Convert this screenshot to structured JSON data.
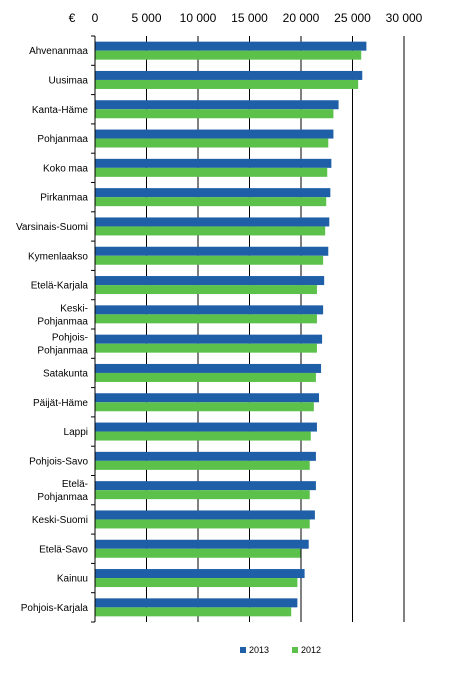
{
  "chart_data": {
    "type": "bar",
    "orientation": "horizontal",
    "unit_label": "€",
    "categories": [
      "Ahvenanmaa",
      "Uusimaa",
      "Kanta-Häme",
      "Pohjanmaa",
      "Koko maa",
      "Pirkanmaa",
      "Varsinais-Suomi",
      "Kymenlaakso",
      "Etelä-Karjala",
      [
        "Keski-",
        "Pohjanmaa"
      ],
      [
        "Pohjois-",
        "Pohjanmaa"
      ],
      "Satakunta",
      "Päijät-Häme",
      "Lappi",
      "Pohjois-Savo",
      [
        "Etelä-",
        "Pohjanmaa"
      ],
      "Keski-Suomi",
      "Etelä-Savo",
      "Kainuu",
      "Pohjois-Karjala"
    ],
    "series": [
      {
        "name": "2013",
        "color": "#1f5fa8",
        "values": [
          26300,
          25900,
          23600,
          23100,
          22900,
          22800,
          22700,
          22600,
          22200,
          22100,
          22000,
          21900,
          21700,
          21500,
          21400,
          21400,
          21300,
          20700,
          20300,
          19600
        ]
      },
      {
        "name": "2012",
        "color": "#5bc14b",
        "values": [
          25800,
          25500,
          23100,
          22600,
          22500,
          22400,
          22300,
          22100,
          21500,
          21500,
          21500,
          21400,
          21200,
          20900,
          20800,
          20800,
          20800,
          19900,
          19600,
          19000
        ]
      }
    ],
    "xlim": [
      0,
      30000
    ],
    "xticks": [
      0,
      5000,
      10000,
      15000,
      20000,
      25000,
      30000
    ],
    "xtick_labels": [
      "0",
      "5 000",
      "10 000",
      "15 000",
      "20 000",
      "25 000",
      "30 000"
    ],
    "grid": "vertical-major",
    "legend": "bottom"
  }
}
